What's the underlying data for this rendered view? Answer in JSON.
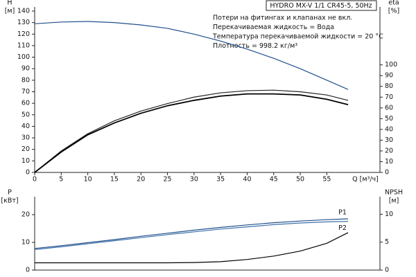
{
  "chart_data": [
    {
      "type": "line",
      "title": "HYDRO MX-V 1/1 CR45-5, 50Hz",
      "annotations": [
        "Потери на фитингах и клапанах не вкл.",
        "Перекачиваемая жидкость = Вода",
        "Температура перекачиваемой жидкости = 20 °C",
        "Плотность = 998.2 кг/м³"
      ],
      "ylabel": "H",
      "ylabel_unit": "[м]",
      "y2label": "eta",
      "y2label_unit": "[%]",
      "xlabel": "Q [м³/ч]",
      "x": [
        0,
        5,
        10,
        15,
        20,
        25,
        30,
        35,
        40,
        45,
        50,
        55,
        59
      ],
      "xlim": [
        0,
        65
      ],
      "xticks": [
        0,
        5,
        10,
        15,
        20,
        25,
        30,
        35,
        40,
        45,
        50,
        55
      ],
      "ylim": [
        0,
        140
      ],
      "yticks": [
        0,
        10,
        20,
        30,
        40,
        50,
        60,
        70,
        80,
        90,
        100,
        110,
        120,
        130,
        140
      ],
      "y2lim": [
        0,
        150
      ],
      "y2ticks": [
        0,
        10,
        20,
        30,
        40,
        50,
        60,
        70,
        80,
        90,
        100
      ],
      "series": [
        {
          "color": "#1f4e8c",
          "values": [
            129,
            130.5,
            131,
            130,
            128,
            125,
            120,
            114,
            107,
            99,
            90,
            80,
            72
          ]
        },
        {
          "color": "#222222",
          "axis": "y2",
          "values": [
            0,
            20,
            36,
            48,
            57,
            64,
            70,
            74,
            76,
            76.5,
            75,
            72,
            67
          ]
        },
        {
          "color": "#000000",
          "axis": "y2",
          "values": [
            0,
            19,
            35,
            46,
            55,
            62,
            67,
            71,
            73,
            73,
            72,
            68,
            63
          ]
        }
      ]
    },
    {
      "type": "line",
      "ylabel": "P",
      "ylabel_unit": "[кВт]",
      "y2label": "NPSH",
      "y2label_unit": "[м]",
      "x": [
        0,
        5,
        10,
        15,
        20,
        25,
        30,
        35,
        40,
        45,
        50,
        55,
        59
      ],
      "xlim": [
        0,
        65
      ],
      "ylim": [
        0,
        25
      ],
      "yticks": [
        0,
        10,
        20
      ],
      "y2lim": [
        0,
        12.4
      ],
      "y2ticks": [
        0,
        5,
        10
      ],
      "series": [
        {
          "name": "P1",
          "color": "#1f4e8c",
          "values": [
            7.8,
            8.8,
            9.9,
            11,
            12.2,
            13.3,
            14.4,
            15.4,
            16.3,
            17.1,
            17.7,
            18.2,
            18.5
          ]
        },
        {
          "name": "P2",
          "color": "#3d6fa8",
          "values": [
            7.4,
            8.4,
            9.5,
            10.6,
            11.7,
            12.8,
            13.8,
            14.8,
            15.6,
            16.4,
            17,
            17.4,
            17.6
          ]
        },
        {
          "color": "#000000",
          "axis": "y2",
          "values": [
            1.3,
            1.3,
            1.3,
            1.3,
            1.3,
            1.3,
            1.35,
            1.5,
            1.9,
            2.5,
            3.4,
            4.8,
            6.7
          ]
        }
      ]
    }
  ]
}
